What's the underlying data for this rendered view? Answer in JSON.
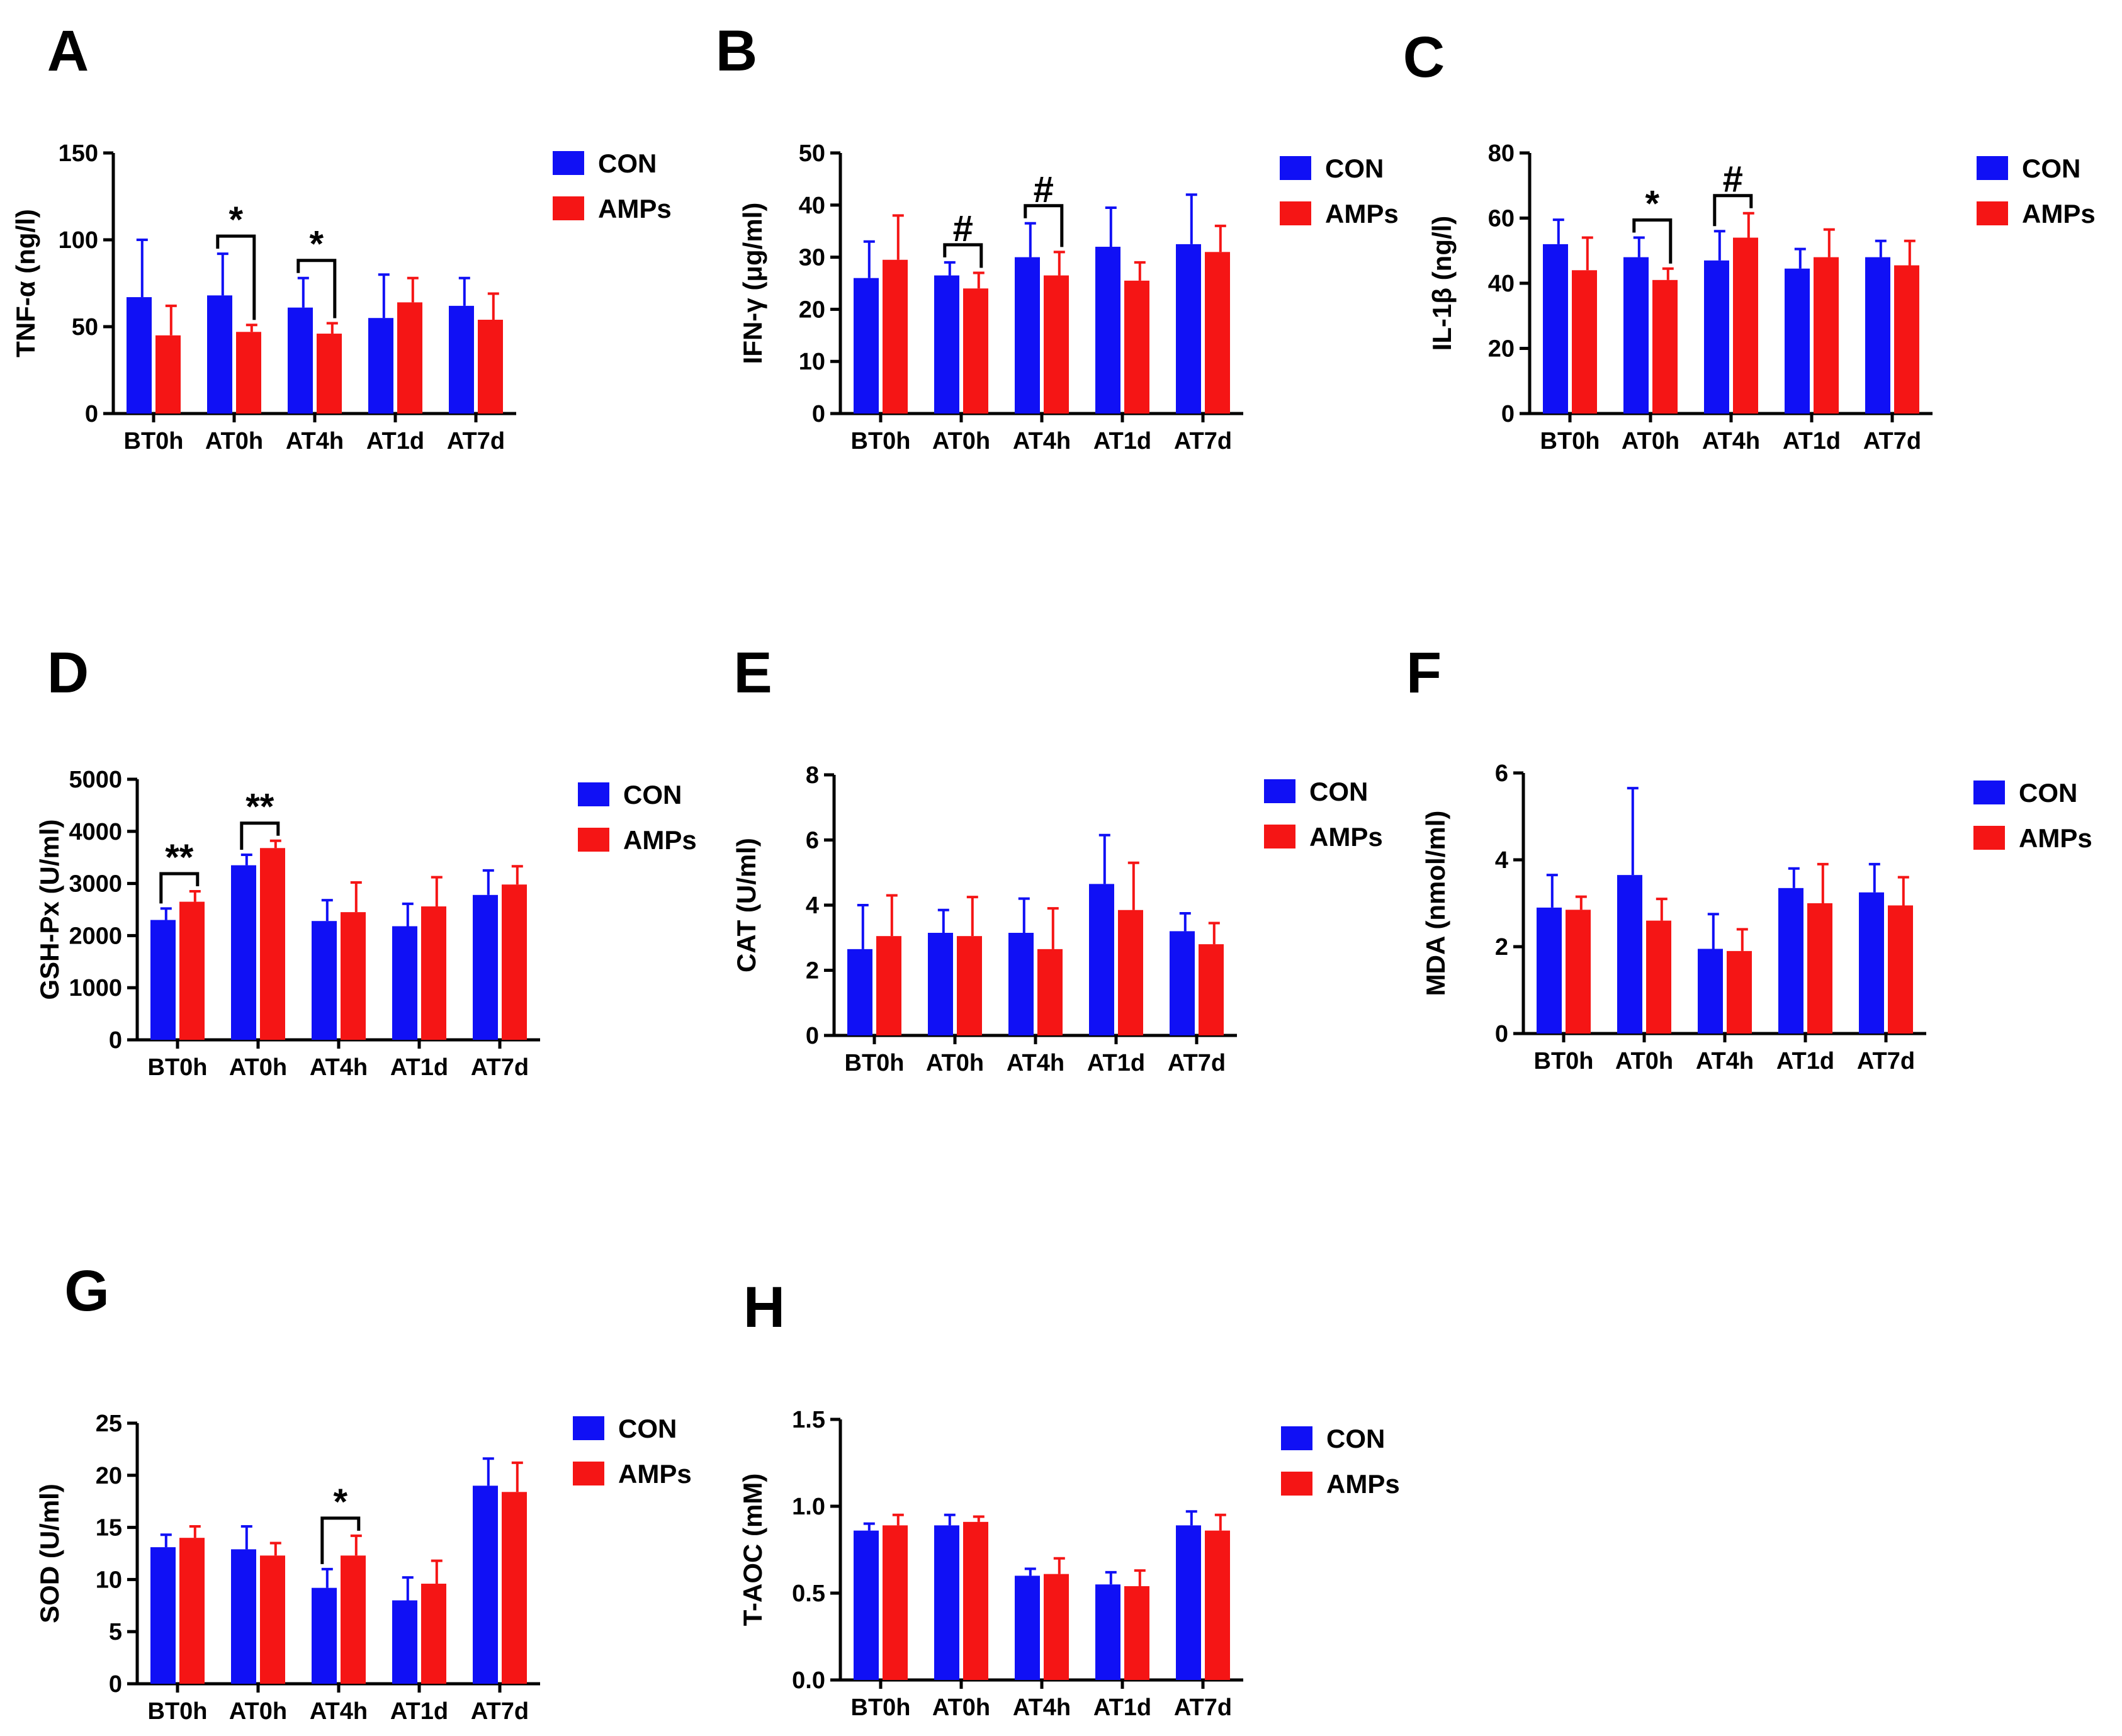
{
  "colors": {
    "con": "#1010f5",
    "amps": "#f51515",
    "axis": "#000000"
  },
  "legend": [
    {
      "name": "CON",
      "color": "#1010f5"
    },
    {
      "name": "AMPs",
      "color": "#f51515"
    }
  ],
  "chart_data": [
    {
      "panel": "A",
      "type": "bar",
      "ylabel": "TNF-α (ng/l)",
      "ylim": [
        0,
        150
      ],
      "yticks": [
        0,
        50,
        100,
        150
      ],
      "categories": [
        "BT0h",
        "AT0h",
        "AT4h",
        "AT1d",
        "AT7d"
      ],
      "series": [
        {
          "name": "CON",
          "values": [
            67,
            68,
            61,
            55,
            62
          ],
          "errors": [
            33,
            24,
            17,
            25,
            16
          ]
        },
        {
          "name": "AMPs",
          "values": [
            45,
            47,
            46,
            64,
            54
          ],
          "errors": [
            17,
            4,
            6,
            14,
            15
          ]
        }
      ],
      "significance": [
        {
          "category": 1,
          "mark": "*"
        },
        {
          "category": 2,
          "mark": "*"
        }
      ]
    },
    {
      "panel": "B",
      "type": "bar",
      "ylabel": "IFN-γ (μg/ml)",
      "ylim": [
        0,
        50
      ],
      "yticks": [
        0,
        10,
        20,
        30,
        40,
        50
      ],
      "categories": [
        "BT0h",
        "AT0h",
        "AT4h",
        "AT1d",
        "AT7d"
      ],
      "series": [
        {
          "name": "CON",
          "values": [
            26,
            26.5,
            30,
            32,
            32.5
          ],
          "errors": [
            7,
            2.5,
            6.5,
            7.5,
            9.5
          ]
        },
        {
          "name": "AMPs",
          "values": [
            29.5,
            24,
            26.5,
            25.5,
            31
          ],
          "errors": [
            8.5,
            3,
            4.5,
            3.5,
            5
          ]
        }
      ],
      "significance": [
        {
          "category": 1,
          "mark": "#"
        },
        {
          "category": 2,
          "mark": "#"
        }
      ]
    },
    {
      "panel": "C",
      "type": "bar",
      "ylabel": "IL-1β (ng/l)",
      "ylim": [
        0,
        80
      ],
      "yticks": [
        0,
        20,
        40,
        60,
        80
      ],
      "categories": [
        "BT0h",
        "AT0h",
        "AT4h",
        "AT1d",
        "AT7d"
      ],
      "series": [
        {
          "name": "CON",
          "values": [
            52,
            48,
            47,
            44.5,
            48
          ],
          "errors": [
            7.5,
            6,
            9,
            6,
            5
          ]
        },
        {
          "name": "AMPs",
          "values": [
            44,
            41,
            54,
            48,
            45.5
          ],
          "errors": [
            10,
            3.5,
            7.5,
            8.5,
            7.5
          ]
        }
      ],
      "significance": [
        {
          "category": 1,
          "mark": "*"
        },
        {
          "category": 2,
          "mark": "#"
        }
      ]
    },
    {
      "panel": "D",
      "type": "bar",
      "ylabel": "GSH-Px (U/ml)",
      "ylim": [
        0,
        5000
      ],
      "yticks": [
        0,
        1000,
        2000,
        3000,
        4000,
        5000
      ],
      "categories": [
        "BT0h",
        "AT0h",
        "AT4h",
        "AT1d",
        "AT7d"
      ],
      "series": [
        {
          "name": "CON",
          "values": [
            2300,
            3350,
            2280,
            2180,
            2780
          ],
          "errors": [
            220,
            200,
            400,
            430,
            470
          ]
        },
        {
          "name": "AMPs",
          "values": [
            2650,
            3680,
            2450,
            2560,
            2980
          ],
          "errors": [
            200,
            140,
            570,
            560,
            350
          ]
        }
      ],
      "significance": [
        {
          "category": 0,
          "mark": "**"
        },
        {
          "category": 1,
          "mark": "**"
        }
      ]
    },
    {
      "panel": "E",
      "type": "bar",
      "ylabel": "CAT (U/ml)",
      "ylim": [
        0,
        8
      ],
      "yticks": [
        0,
        2,
        4,
        6,
        8
      ],
      "categories": [
        "BT0h",
        "AT0h",
        "AT4h",
        "AT1d",
        "AT7d"
      ],
      "series": [
        {
          "name": "CON",
          "values": [
            2.65,
            3.15,
            3.15,
            4.65,
            3.2
          ],
          "errors": [
            1.35,
            0.7,
            1.05,
            1.5,
            0.55
          ]
        },
        {
          "name": "AMPs",
          "values": [
            3.05,
            3.05,
            2.65,
            3.85,
            2.8
          ],
          "errors": [
            1.25,
            1.2,
            1.25,
            1.45,
            0.65
          ]
        }
      ],
      "significance": []
    },
    {
      "panel": "F",
      "type": "bar",
      "ylabel": "MDA (nmol/ml)",
      "ylim": [
        0,
        6
      ],
      "yticks": [
        0,
        2,
        4,
        6
      ],
      "categories": [
        "BT0h",
        "AT0h",
        "AT4h",
        "AT1d",
        "AT7d"
      ],
      "series": [
        {
          "name": "CON",
          "values": [
            2.9,
            3.65,
            1.95,
            3.35,
            3.25
          ],
          "errors": [
            0.75,
            2.0,
            0.8,
            0.45,
            0.65
          ]
        },
        {
          "name": "AMPs",
          "values": [
            2.85,
            2.6,
            1.9,
            3.0,
            2.95
          ],
          "errors": [
            0.3,
            0.5,
            0.5,
            0.9,
            0.65
          ]
        }
      ],
      "significance": []
    },
    {
      "panel": "G",
      "type": "bar",
      "ylabel": "SOD (U/ml)",
      "ylim": [
        0,
        25
      ],
      "yticks": [
        0,
        5,
        10,
        15,
        20,
        25
      ],
      "categories": [
        "BT0h",
        "AT0h",
        "AT4h",
        "AT1d",
        "AT7d"
      ],
      "series": [
        {
          "name": "CON",
          "values": [
            13.1,
            12.9,
            9.2,
            8.0,
            19.0
          ],
          "errors": [
            1.2,
            2.2,
            1.8,
            2.2,
            2.6
          ]
        },
        {
          "name": "AMPs",
          "values": [
            14.0,
            12.3,
            12.3,
            9.6,
            18.4
          ],
          "errors": [
            1.1,
            1.2,
            1.9,
            2.2,
            2.8
          ]
        }
      ],
      "significance": [
        {
          "category": 2,
          "mark": "*"
        }
      ]
    },
    {
      "panel": "H",
      "type": "bar",
      "ylabel": "T-AOC (mM)",
      "ylim": [
        0,
        1.5
      ],
      "yticks": [
        "0.0",
        "0.5",
        "1.0",
        "1.5"
      ],
      "categories": [
        "BT0h",
        "AT0h",
        "AT4h",
        "AT1d",
        "AT7d"
      ],
      "series": [
        {
          "name": "CON",
          "values": [
            0.86,
            0.89,
            0.6,
            0.55,
            0.89
          ],
          "errors": [
            0.04,
            0.06,
            0.04,
            0.07,
            0.08
          ]
        },
        {
          "name": "AMPs",
          "values": [
            0.89,
            0.91,
            0.61,
            0.54,
            0.86
          ],
          "errors": [
            0.06,
            0.03,
            0.09,
            0.09,
            0.09
          ]
        }
      ],
      "significance": []
    }
  ]
}
